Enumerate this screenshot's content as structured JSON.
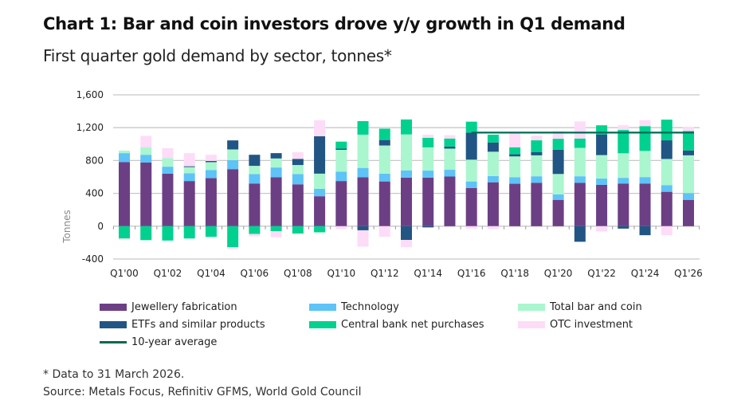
{
  "title": "Chart 1: Bar and coin investors drove y/y growth in Q1 demand",
  "subtitle": "First quarter gold demand by sector, tonnes*",
  "footnote": "* Data to 31 March 2026.",
  "source": "Source: Metals Focus, Refinitiv GFMS, World Gold Council",
  "chart_data": {
    "type": "bar",
    "stacked": true,
    "ylabel": "Tonnes",
    "ylim": [
      -400,
      1600
    ],
    "yticks": [
      "1,600",
      "1,200",
      "800",
      "400",
      "0",
      "-400"
    ],
    "ytick_values": [
      1600,
      1200,
      800,
      400,
      0,
      -400
    ],
    "grid": true,
    "legend_position": "bottom",
    "categories": [
      "Q1'00",
      "Q1'01",
      "Q1'02",
      "Q1'03",
      "Q1'04",
      "Q1'05",
      "Q1'06",
      "Q1'07",
      "Q1'08",
      "Q1'09",
      "Q1'10",
      "Q1'11",
      "Q1'12",
      "Q1'13",
      "Q1'14",
      "Q1'15",
      "Q1'16",
      "Q1'17",
      "Q1'18",
      "Q1'19",
      "Q1'20",
      "Q1'21",
      "Q1'22",
      "Q1'23",
      "Q1'24",
      "Q1'25",
      "Q1'26"
    ],
    "xtick_labels": [
      "Q1'00",
      "Q1'02",
      "Q1'04",
      "Q1'06",
      "Q1'08",
      "Q1'10",
      "Q1'12",
      "Q1'14",
      "Q1'16",
      "Q1'18",
      "Q1'20",
      "Q1'22",
      "Q1'24",
      "Q1'26"
    ],
    "series": [
      {
        "name": "Jewellery fabrication",
        "color": "#6c3f85",
        "values": [
          780,
          775,
          640,
          550,
          585,
          695,
          520,
          595,
          510,
          365,
          550,
          595,
          545,
          592,
          592,
          605,
          466,
          535,
          517,
          529,
          321,
          529,
          504,
          520,
          520,
          419,
          321
        ]
      },
      {
        "name": "Technology",
        "color": "#5ec3f7",
        "values": [
          110,
          95,
          85,
          95,
          100,
          110,
          115,
          120,
          125,
          90,
          115,
          115,
          95,
          88,
          85,
          82,
          79,
          76,
          78,
          79,
          66,
          79,
          76,
          69,
          78,
          79,
          82
        ]
      },
      {
        "name": "Total bar and coin",
        "color": "#aaf6cf",
        "values": [
          30,
          90,
          105,
          75,
          95,
          130,
          100,
          110,
          110,
          185,
          265,
          405,
          343,
          438,
          283,
          258,
          265,
          296,
          255,
          255,
          249,
          346,
          286,
          299,
          319,
          321,
          460
        ]
      },
      {
        "name": "ETFs and similar products",
        "color": "#215584",
        "values": [
          0,
          0,
          0,
          10,
          15,
          110,
          135,
          65,
          75,
          455,
          15,
          -50,
          67,
          -167,
          -15,
          25,
          330,
          113,
          26,
          38,
          296,
          -190,
          252,
          -30,
          -110,
          227,
          60
        ]
      },
      {
        "name": "Central bank net purchases",
        "color": "#00d18f",
        "values": [
          -150,
          -170,
          -175,
          -150,
          -130,
          -255,
          -95,
          -60,
          -90,
          -75,
          85,
          165,
          138,
          182,
          117,
          98,
          133,
          95,
          85,
          145,
          133,
          114,
          111,
          284,
          302,
          252,
          236
        ]
      },
      {
        "name": "OTC investment",
        "color": "#fddcf8",
        "values": [
          -20,
          140,
          120,
          160,
          75,
          -25,
          -30,
          -75,
          80,
          195,
          -35,
          -200,
          -130,
          -90,
          38,
          41,
          -30,
          -35,
          189,
          57,
          94,
          208,
          -65,
          57,
          73,
          -110,
          54
        ]
      }
    ],
    "reference_line": {
      "name": "10-year average",
      "color": "#006a55",
      "value": 1140,
      "from": "Q1'16",
      "to": "Q1'26"
    }
  },
  "legend": [
    {
      "label": "Jewellery fabrication",
      "color": "#6c3f85",
      "kind": "box"
    },
    {
      "label": "Technology",
      "color": "#5ec3f7",
      "kind": "box"
    },
    {
      "label": "Total bar and coin",
      "color": "#aaf6cf",
      "kind": "box"
    },
    {
      "label": "ETFs and similar products",
      "color": "#215584",
      "kind": "box"
    },
    {
      "label": "Central bank net purchases",
      "color": "#00d18f",
      "kind": "box"
    },
    {
      "label": "OTC investment",
      "color": "#fddcf8",
      "kind": "box"
    },
    {
      "label": "10-year average",
      "color": "#006a55",
      "kind": "line"
    }
  ]
}
